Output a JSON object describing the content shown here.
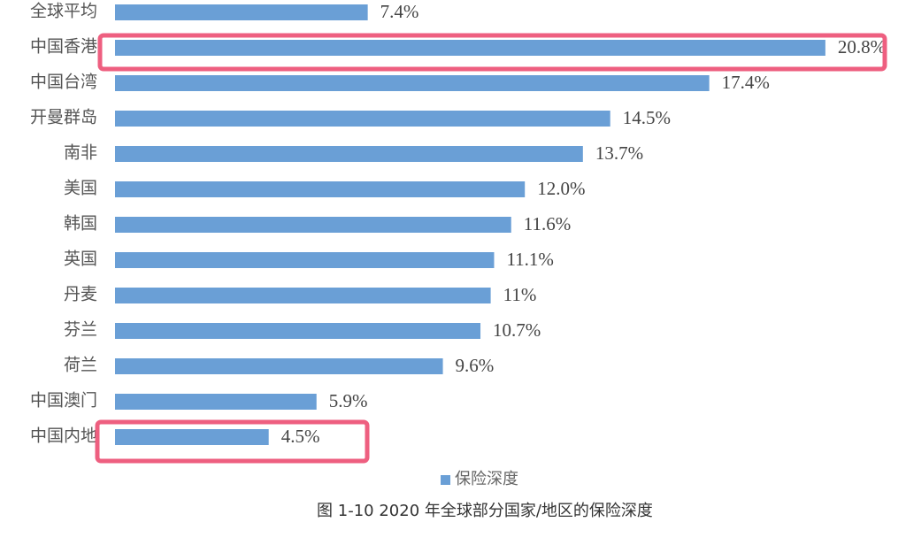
{
  "chart_data": {
    "type": "bar",
    "orientation": "horizontal",
    "caption": "图 1-10 2020 年全球部分国家/地区的保险深度",
    "categories": [
      "全球平均",
      "中国香港",
      "中国台湾",
      "开曼群岛",
      "南非",
      "美国",
      "韩国",
      "英国",
      "丹麦",
      "芬兰",
      "荷兰",
      "中国澳门",
      "中国内地"
    ],
    "series": [
      {
        "name": "保险深度",
        "color": "#6a9fd6",
        "values": [
          7.4,
          20.8,
          17.4,
          14.5,
          13.7,
          12.0,
          11.6,
          11.1,
          11,
          10.7,
          9.6,
          5.9,
          4.5
        ],
        "value_labels": [
          "7.4%",
          "20.8%",
          "17.4%",
          "14.5%",
          "13.7%",
          "12.0%",
          "11.6%",
          "11.1%",
          "11%",
          "10.7%",
          "9.6%",
          "5.9%",
          "4.5%"
        ]
      }
    ]
  }
}
